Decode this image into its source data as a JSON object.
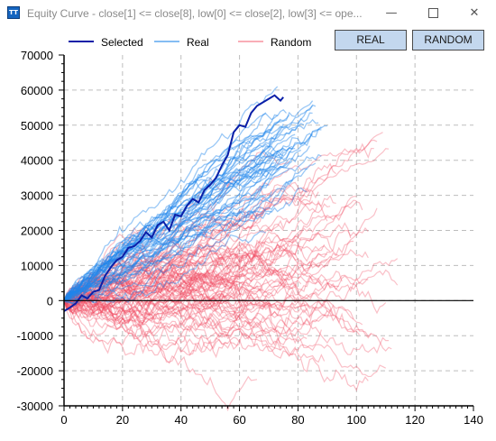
{
  "window": {
    "title": "Equity Curve - close[1] <= close[8], low[0] <= close[2], low[3] <= ope...",
    "app_icon_text": "TT",
    "minimize_glyph": "—",
    "close_glyph": "✕"
  },
  "toolbar": {
    "real_label": "REAL",
    "random_label": "RANDOM"
  },
  "colors": {
    "selected": "#0a1fa8",
    "real": "#1f86ea",
    "random": "#f24b60",
    "axis": "#000000",
    "grid": "#bdbdbd",
    "button_bg": "#c3d7ee"
  },
  "chart_data": {
    "type": "line",
    "title": "",
    "xlabel": "",
    "ylabel": "",
    "xlim": [
      0,
      140
    ],
    "ylim": [
      -30000,
      70000
    ],
    "x_ticks": [
      0,
      20,
      40,
      60,
      80,
      100,
      120,
      140
    ],
    "y_ticks": [
      70000,
      60000,
      50000,
      40000,
      30000,
      20000,
      10000,
      0,
      -10000,
      -20000,
      -30000
    ],
    "grid": true,
    "zero_line": 0,
    "legend_position": "top",
    "legend": [
      "Selected",
      "Real",
      "Random"
    ],
    "series": [
      {
        "name": "Selected",
        "x": [
          0,
          2,
          4,
          6,
          8,
          10,
          12,
          14,
          16,
          18,
          20,
          22,
          24,
          26,
          28,
          30,
          32,
          34,
          36,
          38,
          40,
          42,
          44,
          46,
          48,
          50,
          52,
          54,
          56,
          58,
          60,
          62,
          64,
          66,
          68,
          70,
          72,
          74,
          75
        ],
        "values": [
          -3000,
          -2000,
          -800,
          1500,
          600,
          2500,
          3000,
          7000,
          9500,
          11500,
          12500,
          15000,
          15500,
          17000,
          19500,
          18000,
          21500,
          22500,
          20000,
          24500,
          24000,
          27000,
          29000,
          28000,
          31500,
          33000,
          35000,
          38500,
          41500,
          48000,
          50000,
          49500,
          53500,
          55500,
          56500,
          57500,
          58500,
          57000,
          58000
        ]
      },
      {
        "name": "Real",
        "summary": "approximately 40 simulated equity curves from 0 to about x=91, ending between about 40000 and 52000",
        "x": [
          0,
          10,
          20,
          30,
          40,
          50,
          60,
          70,
          80,
          91
        ],
        "values": [
          0,
          5000,
          10000,
          15000,
          20000,
          25000,
          30000,
          36000,
          42000,
          47000
        ]
      },
      {
        "name": "Random",
        "summary": "about 80 randomized equity curves from 0 to about x=115, ending between about -20000 and 43000",
        "x": [
          0,
          10,
          20,
          30,
          40,
          50,
          60,
          70,
          80,
          90,
          100,
          110,
          115
        ],
        "values": [
          0,
          2000,
          4000,
          6000,
          8000,
          10000,
          12000,
          14000,
          16000,
          18000,
          20000,
          22000,
          23000
        ]
      }
    ]
  }
}
